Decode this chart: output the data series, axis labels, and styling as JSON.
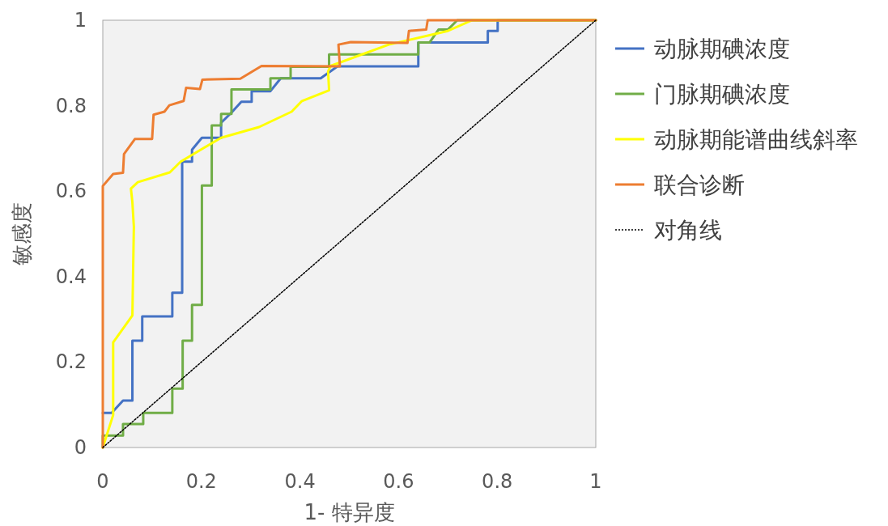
{
  "chart_data": {
    "type": "line",
    "xlabel": "1- 特异度",
    "ylabel": "敏感度",
    "xlim": [
      0,
      1
    ],
    "ylim": [
      0,
      1
    ],
    "xticks": [
      0,
      0.2,
      0.4,
      0.6,
      0.8,
      1
    ],
    "yticks": [
      0,
      0.2,
      0.4,
      0.6,
      0.8,
      1
    ],
    "grid": false,
    "legend": "right",
    "series": [
      {
        "name": "动脉期碘浓度",
        "color": "#4472c4",
        "x": [
          0,
          0.018,
          0.041,
          0.06,
          0.06,
          0.08,
          0.08,
          0.141,
          0.141,
          0.161,
          0.161,
          0.181,
          0.181,
          0.201,
          0.24,
          0.24,
          0.262,
          0.281,
          0.302,
          0.302,
          0.34,
          0.361,
          0.442,
          0.476,
          0.64,
          0.64,
          0.781,
          0.781,
          0.801,
          0.801,
          1
        ],
        "values": [
          0.081,
          0.081,
          0.11,
          0.11,
          0.25,
          0.25,
          0.307,
          0.307,
          0.362,
          0.362,
          0.669,
          0.669,
          0.697,
          0.725,
          0.725,
          0.76,
          0.785,
          0.809,
          0.809,
          0.834,
          0.834,
          0.864,
          0.864,
          0.892,
          0.892,
          0.948,
          0.948,
          0.975,
          0.975,
          1,
          1
        ]
      },
      {
        "name": "门脉期碘浓度",
        "color": "#70ad47",
        "x": [
          0,
          0,
          0.041,
          0.041,
          0.082,
          0.082,
          0.141,
          0.141,
          0.162,
          0.162,
          0.181,
          0.181,
          0.201,
          0.201,
          0.221,
          0.221,
          0.24,
          0.24,
          0.261,
          0.261,
          0.34,
          0.34,
          0.381,
          0.381,
          0.459,
          0.459,
          0.64,
          0.64,
          0.663,
          0.681,
          0.7,
          0.719,
          1
        ],
        "values": [
          0,
          0.028,
          0.028,
          0.055,
          0.055,
          0.081,
          0.081,
          0.138,
          0.138,
          0.25,
          0.25,
          0.334,
          0.334,
          0.613,
          0.613,
          0.754,
          0.754,
          0.781,
          0.781,
          0.838,
          0.838,
          0.864,
          0.864,
          0.891,
          0.891,
          0.92,
          0.92,
          0.948,
          0.948,
          0.978,
          0.978,
          1,
          1
        ]
      },
      {
        "name": "动脉期能谱曲线斜率",
        "color": "#ffff00",
        "x": [
          0,
          0.021,
          0.021,
          0.06,
          0.063,
          0.06,
          0.057,
          0.071,
          0.136,
          0.158,
          0.24,
          0.317,
          0.383,
          0.404,
          0.459,
          0.457,
          0.462,
          0.58,
          0.7,
          0.749,
          1
        ],
        "values": [
          0,
          0.076,
          0.246,
          0.309,
          0.517,
          0.574,
          0.606,
          0.621,
          0.644,
          0.669,
          0.725,
          0.75,
          0.786,
          0.811,
          0.836,
          0.88,
          0.893,
          0.943,
          0.975,
          1,
          1
        ]
      },
      {
        "name": "联合诊断",
        "color": "#ed7d31",
        "x": [
          0,
          0,
          0.021,
          0.041,
          0.043,
          0.065,
          0.1,
          0.103,
          0.125,
          0.135,
          0.164,
          0.169,
          0.197,
          0.202,
          0.279,
          0.322,
          0.481,
          0.478,
          0.503,
          0.618,
          0.621,
          0.656,
          0.659,
          1
        ],
        "values": [
          0,
          0.612,
          0.64,
          0.643,
          0.687,
          0.722,
          0.722,
          0.779,
          0.786,
          0.801,
          0.811,
          0.842,
          0.839,
          0.861,
          0.863,
          0.893,
          0.892,
          0.943,
          0.949,
          0.947,
          0.975,
          0.978,
          1,
          1
        ]
      },
      {
        "name": "对角线",
        "color": "#000000",
        "line_style": "dotted",
        "x": [
          0,
          1
        ],
        "values": [
          0,
          1
        ]
      }
    ]
  }
}
